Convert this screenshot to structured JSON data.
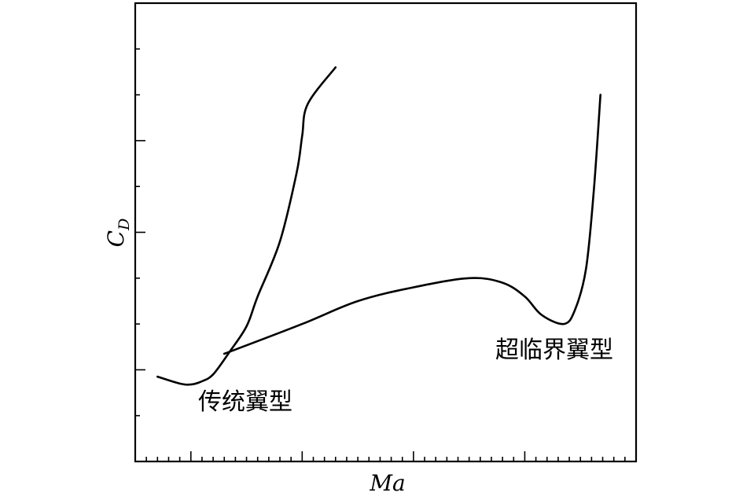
{
  "chart_data": {
    "type": "line",
    "title": "",
    "xlabel": "Ma",
    "ylabel_main": "C",
    "ylabel_sub": "D",
    "xlim": [
      0.55,
      1.0
    ],
    "ylim": [
      0,
      1
    ],
    "x_ticks_major": [
      0.6,
      0.7,
      0.8,
      0.9,
      1.0
    ],
    "x_ticks_minor": [
      0.56,
      0.57,
      0.58,
      0.59,
      0.61,
      0.62,
      0.63,
      0.64,
      0.65,
      0.66,
      0.67,
      0.68,
      0.69,
      0.71,
      0.72,
      0.73,
      0.74,
      0.75,
      0.76,
      0.77,
      0.78,
      0.79,
      0.81,
      0.82,
      0.83,
      0.84,
      0.85,
      0.86,
      0.87,
      0.88,
      0.89,
      0.91,
      0.92,
      0.93,
      0.94,
      0.95,
      0.96,
      0.97,
      0.98,
      0.99
    ],
    "y_ticks_major": [
      0.2,
      0.5,
      0.7
    ],
    "y_ticks_minor": [
      0.1,
      0.3,
      0.4,
      0.6,
      0.8,
      0.9
    ],
    "x_tick_labels_shown": false,
    "y_tick_labels_shown": false,
    "grid": false,
    "legend": "none",
    "series": [
      {
        "name": "传统翼型",
        "x": [
          0.57,
          0.59,
          0.6,
          0.61,
          0.62,
          0.635,
          0.65,
          0.66,
          0.68,
          0.695,
          0.7,
          0.705,
          0.73
        ],
        "y": [
          0.185,
          0.17,
          0.168,
          0.175,
          0.19,
          0.24,
          0.295,
          0.36,
          0.48,
          0.63,
          0.71,
          0.78,
          0.86
        ]
      },
      {
        "name": "超临界翼型",
        "x": [
          0.63,
          0.7,
          0.75,
          0.8,
          0.85,
          0.88,
          0.9,
          0.915,
          0.935,
          0.945,
          0.955,
          0.962,
          0.968
        ],
        "y": [
          0.235,
          0.3,
          0.35,
          0.38,
          0.4,
          0.39,
          0.36,
          0.32,
          0.3,
          0.33,
          0.42,
          0.59,
          0.8
        ]
      }
    ],
    "annotations": [
      {
        "text": "传统翼型",
        "near_series": "传统翼型",
        "position": "below curve minimum"
      },
      {
        "text": "超临界翼型",
        "near_series": "超临界翼型",
        "position": "below local dip"
      }
    ]
  }
}
